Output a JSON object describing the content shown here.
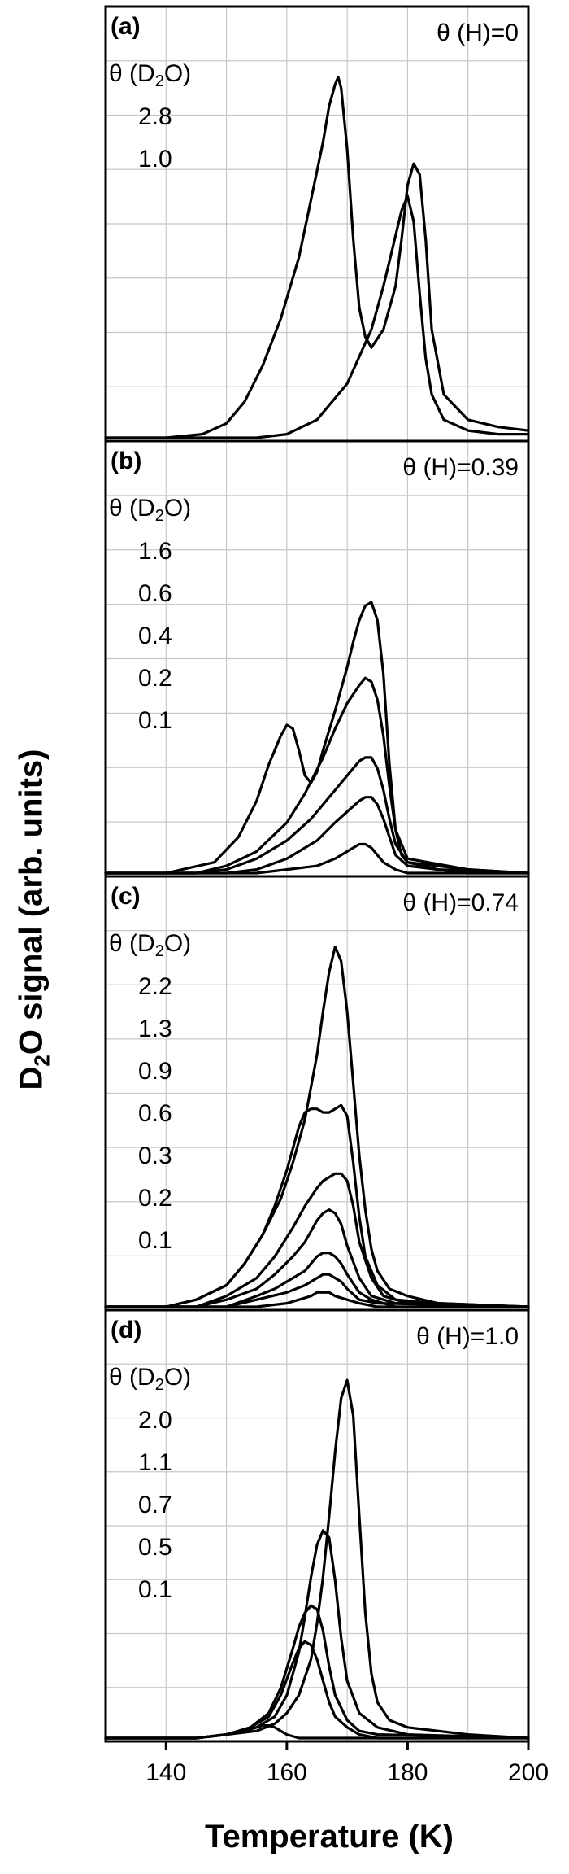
{
  "figure": {
    "ylabel_main": "D",
    "ylabel_sub": "2",
    "ylabel_rest": "O signal (arb. units)",
    "xlabel": "Temperature (K)",
    "x_ticks": [
      "140",
      "160",
      "180",
      "200"
    ]
  },
  "chart_data": [
    {
      "type": "line",
      "panel": "(a)",
      "theta_H": "θ (H)=0",
      "legend_title": "θ (D2O)",
      "legend_title_main": "θ (D",
      "legend_title_sub": "2",
      "legend_title_end": "O)",
      "legend_values": [
        "2.8",
        "1.0"
      ],
      "xlim": [
        130,
        200
      ],
      "series": [
        {
          "name": "2.8",
          "x": [
            130,
            140,
            146,
            150,
            153,
            156,
            159,
            162,
            164,
            166,
            167,
            168,
            168.5,
            169,
            170,
            171,
            172,
            173,
            174,
            176,
            178,
            179,
            180,
            181,
            182,
            183,
            184,
            186,
            190,
            195,
            200
          ],
          "y": [
            0.0,
            0.0,
            0.01,
            0.04,
            0.1,
            0.2,
            0.33,
            0.5,
            0.66,
            0.82,
            0.92,
            0.98,
            1.0,
            0.97,
            0.8,
            0.55,
            0.36,
            0.28,
            0.25,
            0.3,
            0.42,
            0.55,
            0.7,
            0.76,
            0.73,
            0.55,
            0.3,
            0.12,
            0.05,
            0.03,
            0.02
          ]
        },
        {
          "name": "1.0",
          "x": [
            130,
            140,
            150,
            155,
            160,
            165,
            170,
            174,
            176,
            178,
            179,
            180,
            181,
            182,
            183,
            184,
            186,
            190,
            195,
            200
          ],
          "y": [
            0.0,
            0.0,
            0.0,
            0.0,
            0.01,
            0.05,
            0.15,
            0.3,
            0.42,
            0.56,
            0.63,
            0.67,
            0.6,
            0.4,
            0.22,
            0.12,
            0.05,
            0.02,
            0.01,
            0.01
          ]
        }
      ]
    },
    {
      "type": "line",
      "panel": "(b)",
      "theta_H": "θ (H)=0.39",
      "legend_title": "θ (D2O)",
      "legend_title_main": "θ (D",
      "legend_title_sub": "2",
      "legend_title_end": "O)",
      "legend_values": [
        "1.6",
        "0.6",
        "0.4",
        "0.2",
        "0.1"
      ],
      "xlim": [
        130,
        200
      ],
      "series": [
        {
          "name": "1.6",
          "x": [
            130,
            140,
            148,
            152,
            155,
            157,
            159,
            160,
            161,
            162,
            163,
            164,
            165,
            166,
            168,
            170,
            171,
            172,
            173,
            174,
            175,
            176,
            177,
            178,
            179,
            180,
            185,
            200
          ],
          "y": [
            0.0,
            0.0,
            0.03,
            0.1,
            0.2,
            0.3,
            0.38,
            0.41,
            0.4,
            0.34,
            0.27,
            0.25,
            0.28,
            0.34,
            0.45,
            0.57,
            0.64,
            0.7,
            0.74,
            0.75,
            0.7,
            0.55,
            0.3,
            0.12,
            0.05,
            0.03,
            0.01,
            0.0
          ]
        },
        {
          "name": "0.6",
          "x": [
            130,
            145,
            150,
            155,
            160,
            163,
            166,
            168,
            170,
            172,
            173,
            174,
            175,
            176,
            177,
            178,
            180,
            190,
            200
          ],
          "y": [
            0.0,
            0.0,
            0.02,
            0.06,
            0.14,
            0.22,
            0.32,
            0.4,
            0.47,
            0.52,
            0.54,
            0.53,
            0.48,
            0.38,
            0.24,
            0.12,
            0.04,
            0.01,
            0.0
          ]
        },
        {
          "name": "0.4",
          "x": [
            130,
            145,
            150,
            155,
            160,
            164,
            168,
            170,
            172,
            173,
            174,
            175,
            176,
            177,
            178,
            180,
            190,
            200
          ],
          "y": [
            0.0,
            0.0,
            0.01,
            0.04,
            0.09,
            0.15,
            0.23,
            0.27,
            0.31,
            0.32,
            0.32,
            0.29,
            0.23,
            0.15,
            0.08,
            0.03,
            0.01,
            0.0
          ]
        },
        {
          "name": "0.2",
          "x": [
            130,
            150,
            155,
            160,
            165,
            168,
            170,
            172,
            173,
            174,
            175,
            176,
            177,
            178,
            180,
            190,
            200
          ],
          "y": [
            0.0,
            0.0,
            0.01,
            0.04,
            0.09,
            0.14,
            0.17,
            0.2,
            0.21,
            0.21,
            0.19,
            0.15,
            0.1,
            0.05,
            0.02,
            0.0,
            0.0
          ]
        },
        {
          "name": "0.1",
          "x": [
            130,
            155,
            160,
            165,
            168,
            170,
            171,
            172,
            173,
            174,
            175,
            176,
            178,
            180,
            190,
            200
          ],
          "y": [
            0.0,
            0.0,
            0.01,
            0.02,
            0.04,
            0.06,
            0.07,
            0.08,
            0.08,
            0.07,
            0.05,
            0.03,
            0.01,
            0.0,
            0.0,
            0.0
          ]
        }
      ]
    },
    {
      "type": "line",
      "panel": "(c)",
      "theta_H": "θ (H)=0.74",
      "legend_title": "θ (D2O)",
      "legend_title_main": "θ (D",
      "legend_title_sub": "2",
      "legend_title_end": "O)",
      "legend_values": [
        "2.2",
        "1.3",
        "0.9",
        "0.6",
        "0.3",
        "0.2",
        "0.1"
      ],
      "xlim": [
        130,
        200
      ],
      "series": [
        {
          "name": "2.2",
          "x": [
            130,
            140,
            145,
            150,
            153,
            156,
            159,
            161,
            163,
            165,
            166,
            167,
            168,
            169,
            170,
            171,
            172,
            173,
            174,
            175,
            177,
            180,
            185,
            200
          ],
          "y": [
            0.0,
            0.0,
            0.02,
            0.06,
            0.12,
            0.2,
            0.3,
            0.4,
            0.52,
            0.7,
            0.82,
            0.93,
            1.0,
            0.96,
            0.82,
            0.62,
            0.42,
            0.27,
            0.16,
            0.1,
            0.05,
            0.03,
            0.01,
            0.0
          ]
        },
        {
          "name": "1.3",
          "x": [
            130,
            140,
            145,
            150,
            153,
            156,
            158,
            160,
            162,
            163,
            164,
            165,
            166,
            167,
            168,
            169,
            170,
            171,
            172,
            173,
            175,
            178,
            185,
            200
          ],
          "y": [
            0.0,
            0.0,
            0.02,
            0.06,
            0.12,
            0.2,
            0.28,
            0.38,
            0.5,
            0.54,
            0.55,
            0.55,
            0.54,
            0.54,
            0.55,
            0.56,
            0.53,
            0.4,
            0.25,
            0.14,
            0.06,
            0.02,
            0.01,
            0.0
          ]
        },
        {
          "name": "0.9",
          "x": [
            130,
            145,
            150,
            155,
            158,
            161,
            163,
            165,
            166,
            167,
            168,
            169,
            170,
            171,
            172,
            174,
            176,
            180,
            200
          ],
          "y": [
            0.0,
            0.0,
            0.03,
            0.08,
            0.14,
            0.22,
            0.28,
            0.33,
            0.35,
            0.36,
            0.37,
            0.37,
            0.35,
            0.28,
            0.18,
            0.08,
            0.03,
            0.01,
            0.0
          ]
        },
        {
          "name": "0.6",
          "x": [
            130,
            145,
            150,
            155,
            158,
            161,
            163,
            164,
            165,
            166,
            167,
            168,
            169,
            170,
            172,
            174,
            178,
            200
          ],
          "y": [
            0.0,
            0.0,
            0.02,
            0.05,
            0.09,
            0.14,
            0.18,
            0.21,
            0.24,
            0.26,
            0.27,
            0.26,
            0.23,
            0.17,
            0.08,
            0.03,
            0.01,
            0.0
          ]
        },
        {
          "name": "0.3",
          "x": [
            130,
            150,
            155,
            158,
            161,
            163,
            164,
            165,
            166,
            167,
            168,
            169,
            170,
            172,
            174,
            178,
            200
          ],
          "y": [
            0.0,
            0.0,
            0.03,
            0.05,
            0.08,
            0.1,
            0.12,
            0.14,
            0.15,
            0.15,
            0.14,
            0.12,
            0.09,
            0.04,
            0.02,
            0.0,
            0.0
          ]
        },
        {
          "name": "0.2",
          "x": [
            130,
            150,
            155,
            160,
            163,
            165,
            166,
            167,
            168,
            169,
            170,
            172,
            175,
            200
          ],
          "y": [
            0.0,
            0.0,
            0.02,
            0.04,
            0.06,
            0.08,
            0.09,
            0.09,
            0.08,
            0.07,
            0.05,
            0.02,
            0.01,
            0.0
          ]
        },
        {
          "name": "0.1",
          "x": [
            130,
            155,
            160,
            162,
            164,
            165,
            166,
            167,
            168,
            170,
            172,
            175,
            200
          ],
          "y": [
            0.0,
            0.0,
            0.01,
            0.02,
            0.03,
            0.04,
            0.04,
            0.04,
            0.03,
            0.02,
            0.01,
            0.0,
            0.0
          ]
        }
      ]
    },
    {
      "type": "line",
      "panel": "(d)",
      "theta_H": "θ (H)=1.0",
      "legend_title": "θ (D2O)",
      "legend_title_main": "θ (D",
      "legend_title_sub": "2",
      "legend_title_end": "O)",
      "legend_values": [
        "2.0",
        "1.1",
        "0.7",
        "0.5",
        "0.1"
      ],
      "xlim": [
        130,
        200
      ],
      "series": [
        {
          "name": "2.0",
          "x": [
            130,
            145,
            150,
            155,
            158,
            160,
            162,
            164,
            165,
            166,
            167,
            168,
            169,
            170,
            171,
            172,
            173,
            174,
            175,
            177,
            180,
            185,
            190,
            200
          ],
          "y": [
            0.0,
            0.0,
            0.01,
            0.02,
            0.04,
            0.07,
            0.12,
            0.22,
            0.32,
            0.45,
            0.62,
            0.8,
            0.95,
            1.0,
            0.9,
            0.62,
            0.35,
            0.18,
            0.1,
            0.05,
            0.03,
            0.02,
            0.01,
            0.0
          ]
        },
        {
          "name": "1.1",
          "x": [
            130,
            145,
            150,
            155,
            158,
            160,
            162,
            163,
            164,
            165,
            166,
            167,
            168,
            169,
            170,
            172,
            175,
            180,
            200
          ],
          "y": [
            0.0,
            0.0,
            0.01,
            0.03,
            0.06,
            0.12,
            0.24,
            0.34,
            0.45,
            0.54,
            0.58,
            0.56,
            0.44,
            0.28,
            0.16,
            0.07,
            0.03,
            0.01,
            0.0
          ]
        },
        {
          "name": "0.7",
          "x": [
            130,
            145,
            150,
            154,
            157,
            159,
            161,
            162,
            163,
            164,
            165,
            166,
            167,
            168,
            170,
            172,
            175,
            200
          ],
          "y": [
            0.0,
            0.0,
            0.01,
            0.03,
            0.07,
            0.14,
            0.25,
            0.31,
            0.35,
            0.37,
            0.36,
            0.3,
            0.2,
            0.12,
            0.05,
            0.02,
            0.01,
            0.0
          ]
        },
        {
          "name": "0.5",
          "x": [
            130,
            145,
            150,
            154,
            157,
            159,
            161,
            162,
            163,
            164,
            165,
            166,
            167,
            168,
            170,
            172,
            175,
            200
          ],
          "y": [
            0.0,
            0.0,
            0.01,
            0.03,
            0.06,
            0.12,
            0.21,
            0.25,
            0.27,
            0.26,
            0.22,
            0.16,
            0.1,
            0.06,
            0.03,
            0.01,
            0.0,
            0.0
          ]
        },
        {
          "name": "0.1",
          "x": [
            130,
            145,
            150,
            153,
            155,
            156,
            157,
            158,
            159,
            160,
            162,
            165,
            200
          ],
          "y": [
            0.0,
            0.0,
            0.01,
            0.02,
            0.03,
            0.035,
            0.035,
            0.03,
            0.02,
            0.01,
            0.0,
            0.0,
            0.0
          ]
        }
      ]
    }
  ]
}
